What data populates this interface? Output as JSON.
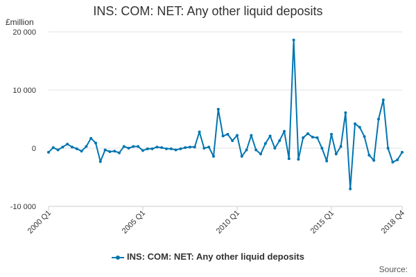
{
  "chart_data": {
    "type": "line",
    "title": "INS: COM: NET: Any other liquid deposits",
    "ylabel": "£million",
    "xlabel": "",
    "ylim": [
      -10000,
      20000
    ],
    "yticks": [
      -10000,
      0,
      10000,
      20000
    ],
    "ytick_labels": [
      "-10 000",
      "0",
      "10 000",
      "20 000"
    ],
    "xtick_labels": [
      "2000 Q1",
      "2005 Q1",
      "2010 Q1",
      "2015 Q1",
      "2018 Q4"
    ],
    "xtick_index": [
      0,
      20,
      40,
      60,
      75
    ],
    "grid": true,
    "legend_position": "bottom",
    "color": "#0075b0",
    "x": [
      "2000 Q1",
      "2000 Q2",
      "2000 Q3",
      "2000 Q4",
      "2001 Q1",
      "2001 Q2",
      "2001 Q3",
      "2001 Q4",
      "2002 Q1",
      "2002 Q2",
      "2002 Q3",
      "2002 Q4",
      "2003 Q1",
      "2003 Q2",
      "2003 Q3",
      "2003 Q4",
      "2004 Q1",
      "2004 Q2",
      "2004 Q3",
      "2004 Q4",
      "2005 Q1",
      "2005 Q2",
      "2005 Q3",
      "2005 Q4",
      "2006 Q1",
      "2006 Q2",
      "2006 Q3",
      "2006 Q4",
      "2007 Q1",
      "2007 Q2",
      "2007 Q3",
      "2007 Q4",
      "2008 Q1",
      "2008 Q2",
      "2008 Q3",
      "2008 Q4",
      "2009 Q1",
      "2009 Q2",
      "2009 Q3",
      "2009 Q4",
      "2010 Q1",
      "2010 Q2",
      "2010 Q3",
      "2010 Q4",
      "2011 Q1",
      "2011 Q2",
      "2011 Q3",
      "2011 Q4",
      "2012 Q1",
      "2012 Q2",
      "2012 Q3",
      "2012 Q4",
      "2013 Q1",
      "2013 Q2",
      "2013 Q3",
      "2013 Q4",
      "2014 Q1",
      "2014 Q2",
      "2014 Q3",
      "2014 Q4",
      "2015 Q1",
      "2015 Q2",
      "2015 Q3",
      "2015 Q4",
      "2016 Q1",
      "2016 Q2",
      "2016 Q3",
      "2016 Q4",
      "2017 Q1",
      "2017 Q2",
      "2017 Q3",
      "2017 Q4",
      "2018 Q1",
      "2018 Q2",
      "2018 Q3",
      "2018 Q4"
    ],
    "series": [
      {
        "name": "INS: COM: NET: Any other liquid deposits",
        "values": [
          -700,
          100,
          -300,
          200,
          700,
          200,
          -100,
          -500,
          300,
          1700,
          900,
          -2300,
          -300,
          -600,
          -500,
          -800,
          300,
          0,
          300,
          300,
          -400,
          -100,
          -100,
          200,
          100,
          -100,
          -100,
          -300,
          -100,
          100,
          200,
          200,
          2800,
          0,
          200,
          -1400,
          6700,
          2100,
          2400,
          1300,
          2200,
          -1400,
          -300,
          2200,
          -300,
          -1000,
          800,
          2100,
          0,
          1300,
          2900,
          -1800,
          18600,
          -1900,
          1800,
          2500,
          1900,
          1800,
          0,
          -2200,
          2400,
          -1000,
          300,
          6100,
          -7000,
          4200,
          3600,
          2000,
          -1200,
          -2100,
          5000,
          8300,
          0,
          -2400,
          -2000,
          -700
        ]
      }
    ]
  },
  "legend": {
    "label": "INS: COM: NET: Any other liquid deposits"
  },
  "source": {
    "label": "Source:"
  }
}
